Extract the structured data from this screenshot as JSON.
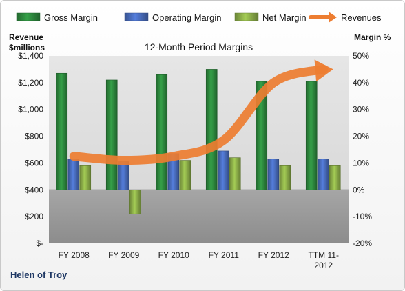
{
  "chart_data": {
    "type": "bar",
    "title": "12-Month Period Margins",
    "company": "Helen of Troy",
    "left_axis": {
      "label_lines": [
        "Revenue",
        "$millions"
      ],
      "ticks": [
        "$-",
        "$200",
        "$400",
        "$600",
        "$800",
        "$1,000",
        "$1,200",
        "$1,400"
      ],
      "range": [
        0,
        1400
      ]
    },
    "right_axis": {
      "label": "Margin %",
      "ticks": [
        "-20%",
        "-10%",
        "0%",
        "10%",
        "20%",
        "30%",
        "40%",
        "50%"
      ],
      "range": [
        -20,
        50
      ]
    },
    "categories": [
      {
        "lines": [
          "FY 2008"
        ]
      },
      {
        "lines": [
          "FY 2009"
        ]
      },
      {
        "lines": [
          "FY 2010"
        ]
      },
      {
        "lines": [
          "FY 2011"
        ]
      },
      {
        "lines": [
          "FY 2012"
        ]
      },
      {
        "lines": [
          "TTM 11-",
          "2012"
        ]
      }
    ],
    "series": [
      {
        "name": "Gross Margin",
        "axis": "right",
        "kind": "bar",
        "color": "#2e8b3f",
        "values": [
          43.5,
          41,
          43,
          45,
          40.5,
          40.5
        ]
      },
      {
        "name": "Operating Margin",
        "axis": "right",
        "kind": "bar",
        "color": "#4a6ebf",
        "values": [
          11.5,
          10.5,
          13.5,
          14.5,
          11.5,
          11.5
        ]
      },
      {
        "name": "Net Margin",
        "axis": "right",
        "kind": "bar",
        "color": "#8fb14a",
        "values": [
          9,
          -9,
          11,
          12,
          9,
          9
        ]
      },
      {
        "name": "Revenues",
        "axis": "left",
        "kind": "line",
        "color": "#ed7d31",
        "values": [
          650,
          620,
          650,
          770,
          1200,
          1300
        ]
      }
    ],
    "plot_shading": {
      "above_zero": "#d9d9d9",
      "below_zero": "#8c8c8c"
    },
    "grid": false,
    "legend_position": "top"
  }
}
